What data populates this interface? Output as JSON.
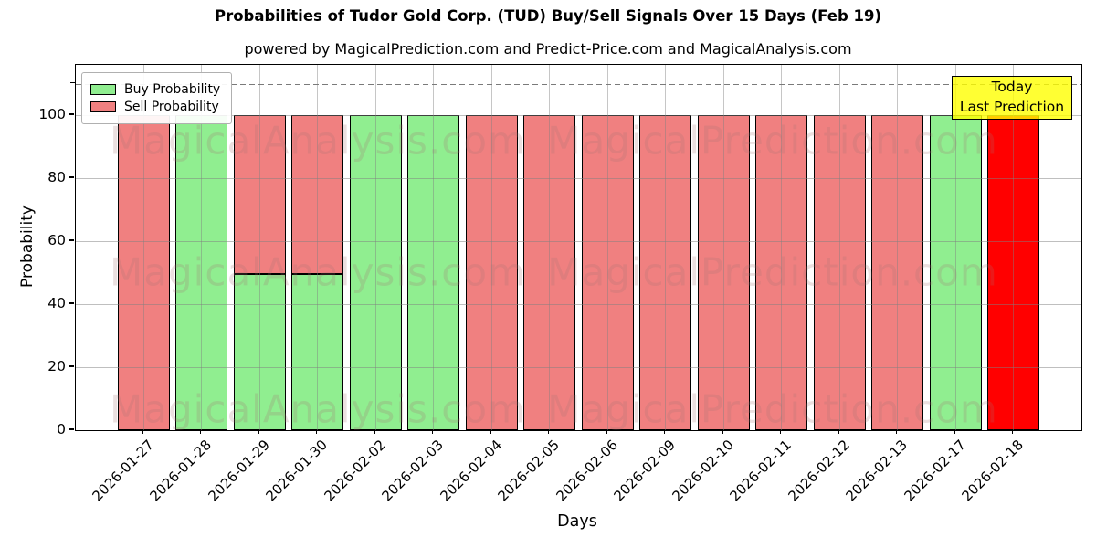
{
  "title": "Probabilities of Tudor Gold Corp. (TUD) Buy/Sell Signals Over 15 Days (Feb 19)",
  "subtitle": "powered by MagicalPrediction.com and Predict-Price.com and MagicalAnalysis.com",
  "legend": {
    "buy_label": "Buy Probability",
    "sell_label": "Sell Probability"
  },
  "annotation": {
    "line1": "Today",
    "line2": "Last Prediction"
  },
  "watermarks": {
    "left_text": "MagicalAnalysis.com",
    "right_text": "MagicalPrediction.com"
  },
  "colors": {
    "buy": "#90EE90",
    "sell": "#F08080",
    "today": "#FF0000",
    "annotation_bg": "#FFFF00",
    "grid": "#808080",
    "edge": "#000000",
    "dashed_line": "#7A7A7A"
  },
  "chart_data": {
    "type": "bar",
    "stacked": true,
    "title": "Probabilities of Tudor Gold Corp. (TUD) Buy/Sell Signals Over 15 Days (Feb 19)",
    "xlabel": "Days",
    "ylabel": "Probability",
    "yticks": [
      0,
      20,
      40,
      60,
      80,
      100
    ],
    "ylim": [
      0,
      116
    ],
    "dashed_line_y": 110,
    "grid": true,
    "legend_position": "upper left",
    "categories": [
      "2026-01-27",
      "2026-01-28",
      "2026-01-29",
      "2026-01-30",
      "2026-02-02",
      "2026-02-03",
      "2026-02-04",
      "2026-02-05",
      "2026-02-06",
      "2026-02-09",
      "2026-02-10",
      "2026-02-11",
      "2026-02-12",
      "2026-02-13",
      "2026-02-17",
      "2026-02-18"
    ],
    "series": [
      {
        "name": "Buy Probability",
        "color": "#90EE90",
        "values": [
          0,
          100,
          49.5,
          49.5,
          100,
          100,
          0,
          0,
          0,
          0,
          0,
          0,
          0,
          0,
          100,
          0
        ]
      },
      {
        "name": "Sell Probability",
        "color": "#F08080",
        "values": [
          100,
          0,
          50.5,
          50.5,
          0,
          0,
          100,
          100,
          100,
          100,
          100,
          100,
          100,
          100,
          0,
          0
        ]
      },
      {
        "name": "Today Last Prediction",
        "color": "#FF0000",
        "values": [
          0,
          0,
          0,
          0,
          0,
          0,
          0,
          0,
          0,
          0,
          0,
          0,
          0,
          0,
          0,
          100
        ]
      }
    ]
  }
}
